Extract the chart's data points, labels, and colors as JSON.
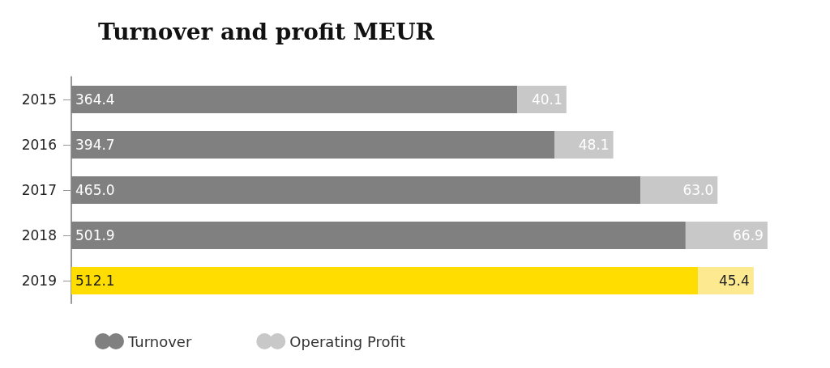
{
  "chart_data": {
    "type": "bar",
    "title": "Turnover and profit MEUR",
    "orientation": "horizontal",
    "stacked": true,
    "legend": "bottom left",
    "categories": [
      "2015",
      "2016",
      "2017",
      "2018",
      "2019"
    ],
    "series": [
      {
        "name": "Turnover",
        "color": "#808080",
        "colors": [
          "#808080",
          "#808080",
          "#808080",
          "#808080",
          "#ffdd00"
        ],
        "values": [
          364.4,
          394.7,
          465.0,
          501.9,
          512.1
        ],
        "value_labels": [
          "364.4",
          "394.7",
          "465.0",
          "501.9",
          "512.1"
        ]
      },
      {
        "name": "Operating Profit",
        "color": "#c8c8c8",
        "colors": [
          "#c8c8c8",
          "#c8c8c8",
          "#c8c8c8",
          "#c8c8c8",
          "#fdea90"
        ],
        "values": [
          40.1,
          48.1,
          63.0,
          66.9,
          45.4
        ],
        "value_labels": [
          "40.1",
          "48.1",
          "63.0",
          "66.9",
          "45.4"
        ]
      }
    ]
  }
}
